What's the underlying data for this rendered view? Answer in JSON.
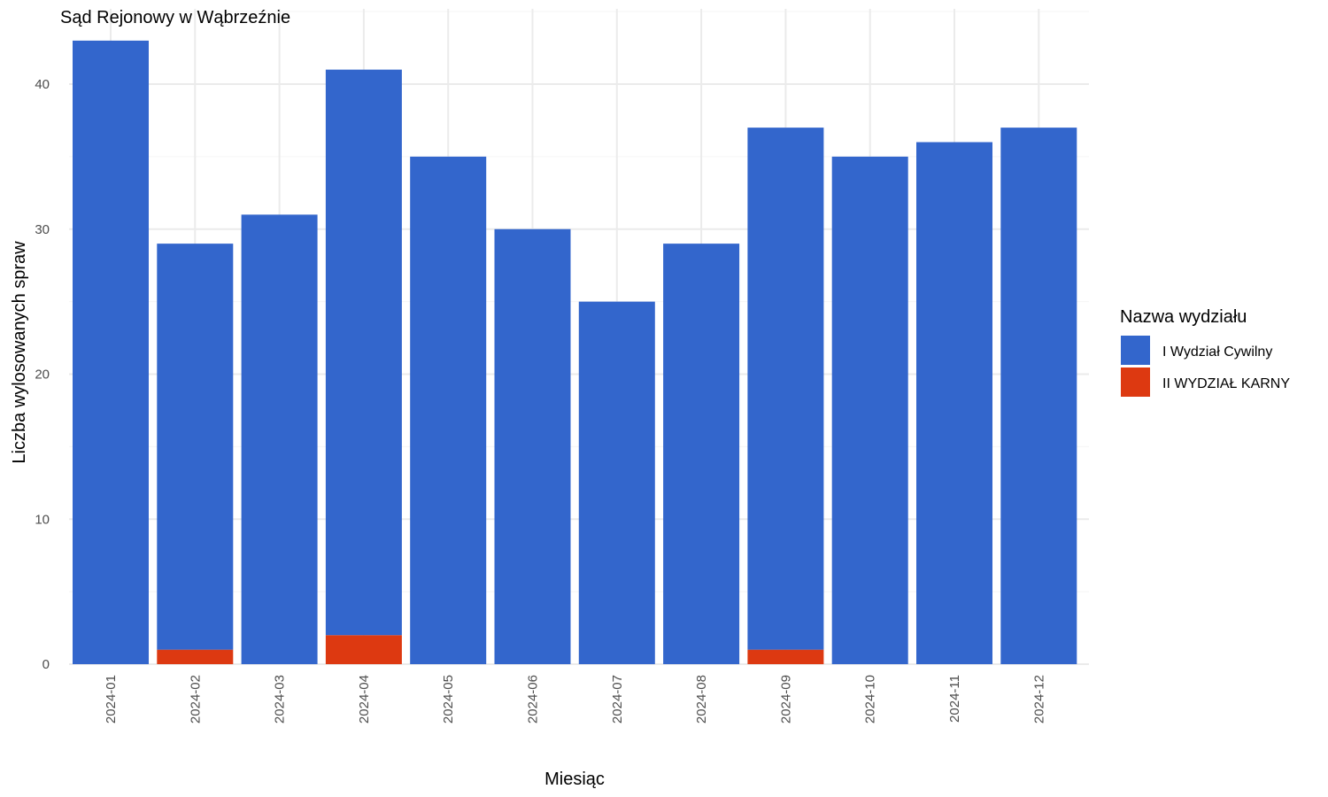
{
  "chart_data": {
    "type": "bar",
    "stacked": true,
    "title": "Sąd Rejonowy w Wąbrzeźnie",
    "xlabel": "Miesiąc",
    "ylabel": "Liczba wylosowanych spraw",
    "categories": [
      "2024-01",
      "2024-02",
      "2024-03",
      "2024-04",
      "2024-05",
      "2024-06",
      "2024-07",
      "2024-08",
      "2024-09",
      "2024-10",
      "2024-11",
      "2024-12"
    ],
    "series": [
      {
        "name": "II WYDZIAŁ KARNY",
        "color": "#dd3911",
        "values": [
          0,
          1,
          0,
          2,
          0,
          0,
          0,
          0,
          1,
          0,
          0,
          0
        ]
      },
      {
        "name": "I Wydział Cywilny",
        "color": "#3366cc",
        "values": [
          43,
          28,
          31,
          39,
          35,
          30,
          25,
          29,
          36,
          35,
          36,
          37
        ]
      }
    ],
    "legend_title": "Nazwa wydziału",
    "legend_order": [
      "I Wydział Cywilny",
      "II WYDZIAŁ KARNY"
    ],
    "ylim": [
      0,
      44
    ],
    "yticks": [
      0,
      10,
      20,
      30,
      40
    ],
    "grid": true,
    "legend_position": "right",
    "x_tick_rotation": "vertical"
  }
}
